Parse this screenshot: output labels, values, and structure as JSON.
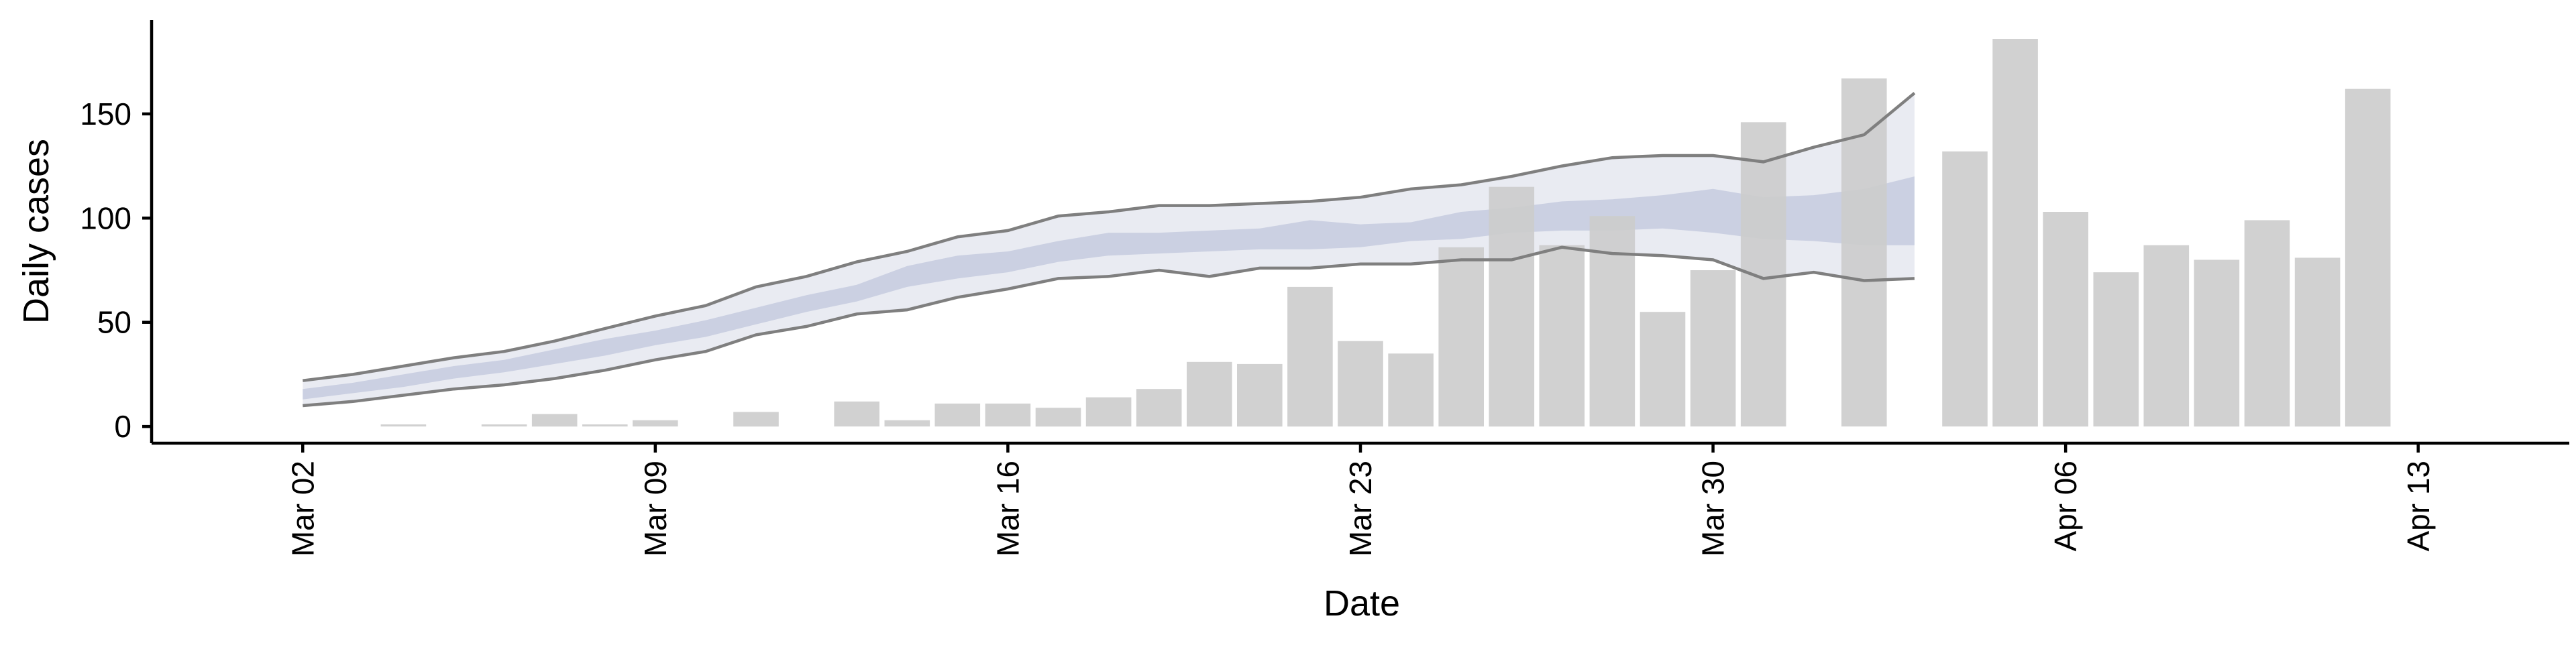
{
  "chart_data": {
    "type": "bar",
    "xlabel": "Date",
    "ylabel": "Daily cases",
    "ylim": [
      -8,
      195
    ],
    "yticks": [
      0,
      50,
      100,
      150
    ],
    "xlim": [
      "2020-02-28",
      "2020-04-16"
    ],
    "xticks": [
      {
        "date": "2020-03-02",
        "label": "Mar 02"
      },
      {
        "date": "2020-03-09",
        "label": "Mar 09"
      },
      {
        "date": "2020-03-16",
        "label": "Mar 16"
      },
      {
        "date": "2020-03-23",
        "label": "Mar 23"
      },
      {
        "date": "2020-03-30",
        "label": "Mar 30"
      },
      {
        "date": "2020-04-06",
        "label": "Apr 06"
      },
      {
        "date": "2020-04-13",
        "label": "Apr 13"
      }
    ],
    "bars": {
      "name": "Daily cases",
      "color": "#cccccc",
      "dates": [
        "2020-03-04",
        "2020-03-06",
        "2020-03-07",
        "2020-03-08",
        "2020-03-09",
        "2020-03-11",
        "2020-03-13",
        "2020-03-14",
        "2020-03-15",
        "2020-03-16",
        "2020-03-17",
        "2020-03-18",
        "2020-03-19",
        "2020-03-20",
        "2020-03-21",
        "2020-03-22",
        "2020-03-23",
        "2020-03-24",
        "2020-03-25",
        "2020-03-26",
        "2020-03-27",
        "2020-03-28",
        "2020-03-29",
        "2020-03-30",
        "2020-03-31",
        "2020-04-02",
        "2020-04-04",
        "2020-04-05",
        "2020-04-06",
        "2020-04-07",
        "2020-04-08",
        "2020-04-09",
        "2020-04-10",
        "2020-04-11",
        "2020-04-12"
      ],
      "values": [
        1,
        1,
        6,
        1,
        3,
        7,
        12,
        3,
        11,
        11,
        9,
        14,
        18,
        31,
        30,
        67,
        41,
        35,
        86,
        115,
        87,
        101,
        55,
        75,
        146,
        167,
        132,
        186,
        103,
        74,
        87,
        80,
        99,
        81,
        162
      ]
    },
    "estimate_band": {
      "color_outer": "#e9ebf2",
      "color_inner": "#c5cbdf",
      "line_color": "#7f7f7f",
      "dates": [
        "2020-03-02",
        "2020-03-03",
        "2020-03-04",
        "2020-03-05",
        "2020-03-06",
        "2020-03-07",
        "2020-03-08",
        "2020-03-09",
        "2020-03-10",
        "2020-03-11",
        "2020-03-12",
        "2020-03-13",
        "2020-03-14",
        "2020-03-15",
        "2020-03-16",
        "2020-03-17",
        "2020-03-18",
        "2020-03-19",
        "2020-03-20",
        "2020-03-21",
        "2020-03-22",
        "2020-03-23",
        "2020-03-24",
        "2020-03-25",
        "2020-03-26",
        "2020-03-27",
        "2020-03-28",
        "2020-03-29",
        "2020-03-30",
        "2020-03-31",
        "2020-04-01",
        "2020-04-02",
        "2020-04-03"
      ],
      "lower": [
        10,
        12,
        15,
        18,
        20,
        23,
        27,
        32,
        36,
        44,
        48,
        54,
        56,
        62,
        66,
        71,
        72,
        75,
        72,
        76,
        76,
        78,
        78,
        80,
        80,
        86,
        83,
        82,
        80,
        71,
        74,
        70,
        71
      ],
      "upper": [
        22,
        25,
        29,
        33,
        36,
        41,
        47,
        53,
        58,
        67,
        72,
        79,
        84,
        91,
        94,
        101,
        103,
        106,
        106,
        107,
        108,
        110,
        114,
        116,
        120,
        125,
        129,
        130,
        130,
        127,
        134,
        140,
        160
      ],
      "inner_lower": [
        13,
        16,
        19,
        23,
        26,
        30,
        34,
        39,
        43,
        49,
        55,
        60,
        67,
        71,
        74,
        79,
        82,
        83,
        84,
        85,
        85,
        86,
        89,
        90,
        93,
        94,
        94,
        95,
        93,
        90,
        89,
        87,
        87
      ],
      "inner_upper": [
        18,
        21,
        25,
        29,
        32,
        37,
        42,
        46,
        51,
        57,
        63,
        68,
        77,
        82,
        84,
        89,
        93,
        93,
        94,
        95,
        99,
        97,
        98,
        103,
        105,
        108,
        109,
        111,
        114,
        110,
        111,
        114,
        120
      ]
    }
  }
}
